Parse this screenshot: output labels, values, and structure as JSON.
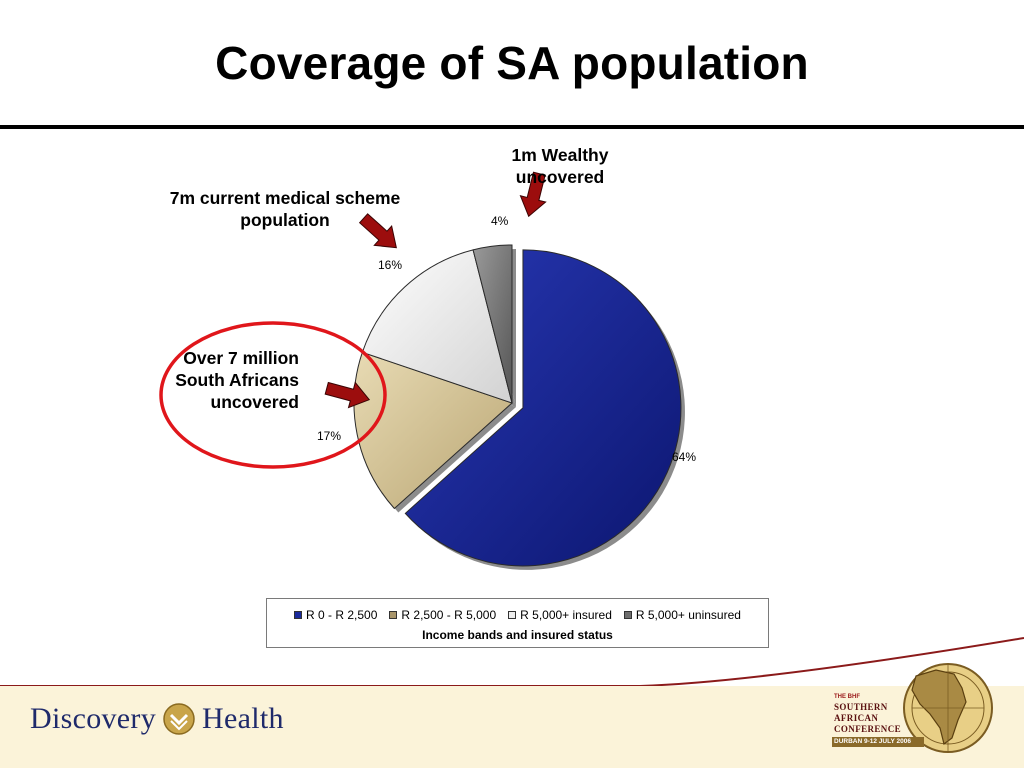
{
  "slide": {
    "title": "Coverage of SA population"
  },
  "annotations": {
    "wealthy": "1m Wealthy uncovered",
    "scheme": "7m current medical scheme population",
    "uncovered": "Over 7 million South Africans uncovered"
  },
  "chart_data": {
    "type": "pie",
    "legend_title": "Income bands and insured status",
    "legend_position": "bottom",
    "slices": [
      {
        "label": "R 0 - R 2,500",
        "value": 64,
        "value_label": "64%",
        "color": "#1a2a9c",
        "exploded": true
      },
      {
        "label": "R 2,500 - R 5,000",
        "value": 17,
        "value_label": "17%",
        "color": "#d9c79a",
        "exploded": false
      },
      {
        "label": "R 5,000+ insured",
        "value": 16,
        "value_label": "16%",
        "color": "#e6e6e6",
        "exploded": false
      },
      {
        "label": "R 5,000+ uninsured",
        "value": 4,
        "value_label": "4%",
        "color": "#7a7a7a",
        "exploded": false
      }
    ]
  },
  "footer": {
    "logo_left_word": "Discovery",
    "logo_right_word": "Health",
    "conference": {
      "small": "THE BHF",
      "line1": "SOUTHERN",
      "line2": "AFRICAN",
      "line3": "CONFERENCE",
      "date": "DURBAN  9-12 JULY 2006"
    }
  }
}
